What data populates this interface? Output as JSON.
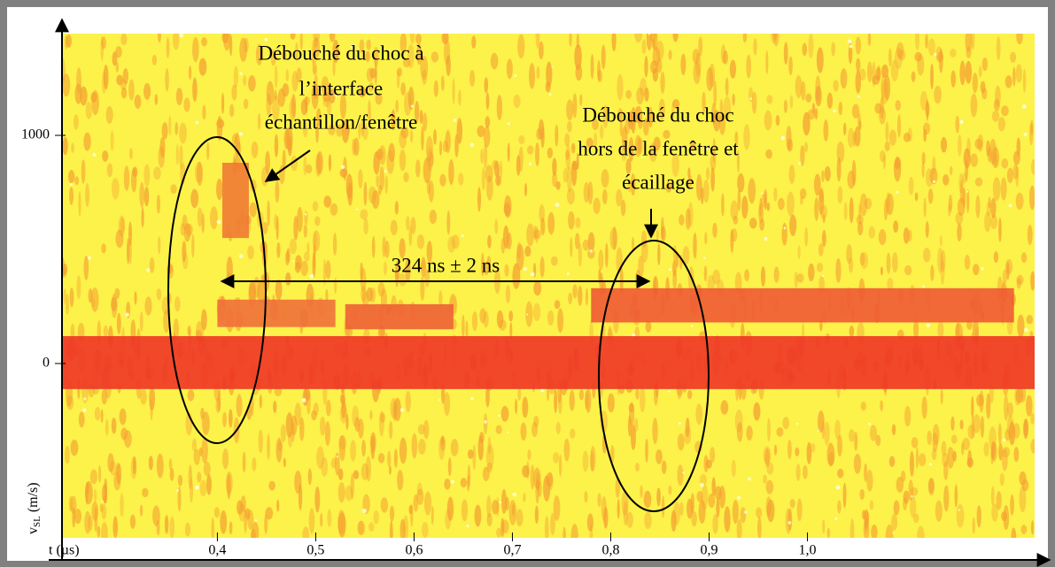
{
  "chart_data": {
    "type": "spectrogram",
    "xlabel": "t (µs)",
    "ylabel": {
      "main": "v",
      "sub": "SL",
      "rest": " (m/s)"
    },
    "xlim": [
      0.242,
      1.231
    ],
    "ylim": [
      -764,
      1446
    ],
    "xticks": [
      {
        "value": 0.4,
        "label": "0,4"
      },
      {
        "value": 0.5,
        "label": "0,5"
      },
      {
        "value": 0.6,
        "label": "0,6"
      },
      {
        "value": 0.7,
        "label": "0,7"
      },
      {
        "value": 0.8,
        "label": "0,8"
      },
      {
        "value": 0.9,
        "label": "0,9"
      },
      {
        "value": 1.0,
        "label": "1,0"
      }
    ],
    "yticks": [
      0,
      1000
    ],
    "background": "#fcf24a",
    "speckle_color": "#f4a030",
    "traces": [
      {
        "x": [
          0.242,
          1.231
        ],
        "y": [
          -112,
          120
        ],
        "color": "#ee3526"
      },
      {
        "x": [
          0.405,
          0.432
        ],
        "y": [
          550,
          880
        ],
        "color": "#ef7a35"
      },
      {
        "x": [
          0.4,
          0.52
        ],
        "y": [
          160,
          280
        ],
        "color": "#f0703a"
      },
      {
        "x": [
          0.53,
          0.64
        ],
        "y": [
          150,
          260
        ],
        "color": "#ee6036"
      },
      {
        "x": [
          0.78,
          1.21
        ],
        "y": [
          180,
          330
        ],
        "color": "#ee5a34"
      }
    ],
    "annotations": {
      "left": [
        "Débouché du choc à",
        "l’interface",
        "échantillon/fenêtre"
      ],
      "right": [
        "Débouché du choc",
        "hors de la fenêtre et",
        "écaillage"
      ],
      "interval": "324 ns ± 2 ns"
    }
  }
}
